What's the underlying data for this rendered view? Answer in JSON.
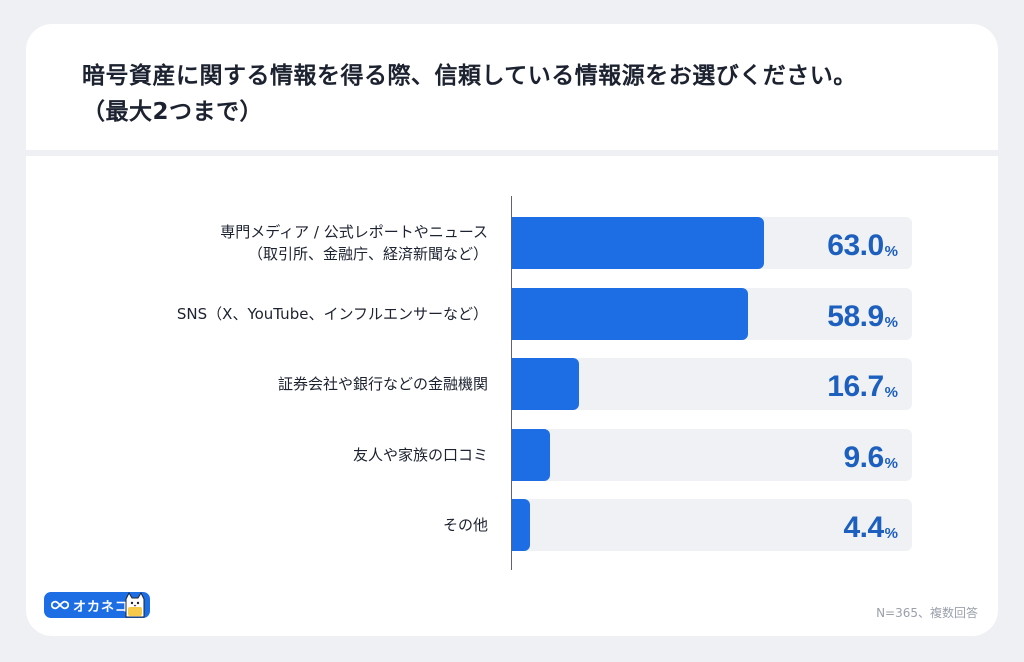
{
  "title": "暗号資産に関する情報を得る際、信頼している情報源をお選びください。（最大2つまで）",
  "footnote": "N=365、複数回答",
  "brand": {
    "name": "オカネコ",
    "color": "#1d6ee5"
  },
  "colors": {
    "bar": "#1d6ee5",
    "track": "#eff1f4",
    "value_text": "#1c5fbe"
  },
  "chart_data": {
    "type": "bar",
    "orientation": "horizontal",
    "categories": [
      "専門メディア / 公式レポートやニュース（取引所、金融庁、経済新聞など）",
      "SNS（X、YouTube、インフルエンサーなど）",
      "証券会社や銀行などの金融機関",
      "友人や家族の口コミ",
      "その他"
    ],
    "category_lines": [
      [
        "専門メディア / 公式レポートやニュース",
        "（取引所、金融庁、経済新聞など）"
      ],
      [
        "SNS（X、YouTube、インフルエンサーなど）"
      ],
      [
        "証券会社や銀行などの金融機関"
      ],
      [
        "友人や家族の口コミ"
      ],
      [
        "その他"
      ]
    ],
    "values": [
      63.0,
      58.9,
      16.7,
      9.6,
      4.4
    ],
    "value_labels": [
      "63.0",
      "58.9",
      "16.7",
      "9.6",
      "4.4"
    ],
    "unit": "%",
    "xlim": [
      0,
      100
    ],
    "grid": false,
    "legend": "none"
  }
}
